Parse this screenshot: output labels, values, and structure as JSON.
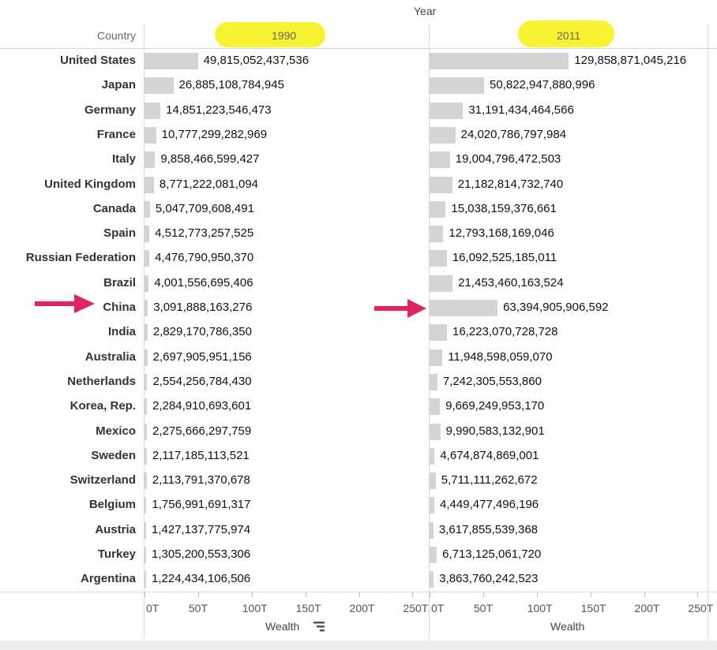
{
  "chart_data": {
    "type": "bar",
    "orientation": "horizontal",
    "column_header_title": "Year",
    "row_header_title": "Country",
    "categories": [
      "United States",
      "Japan",
      "Germany",
      "France",
      "Italy",
      "United Kingdom",
      "Canada",
      "Spain",
      "Russian Federation",
      "Brazil",
      "China",
      "India",
      "Australia",
      "Netherlands",
      "Korea, Rep.",
      "Mexico",
      "Sweden",
      "Switzerland",
      "Belgium",
      "Austria",
      "Turkey",
      "Argentina"
    ],
    "xlabel": "Wealth",
    "xlim": [
      0,
      260000000000000
    ],
    "xticks": [
      "0T",
      "50T",
      "100T",
      "150T",
      "200T",
      "250T"
    ],
    "series": [
      {
        "name": "1990",
        "values": [
          49815052437536,
          26885108784945,
          14851223546473,
          10777299282969,
          9858466599427,
          8771222081094,
          5047709608491,
          4512773257525,
          4476790950370,
          4001556695406,
          3091888163276,
          2829170786350,
          2697905951156,
          2554256784430,
          2284910693601,
          2275666297759,
          2117185113521,
          2113791370678,
          1756991691317,
          1427137775974,
          1305200553306,
          1224434106506
        ],
        "labels": [
          "49,815,052,437,536",
          "26,885,108,784,945",
          "14,851,223,546,473",
          "10,777,299,282,969",
          "9,858,466,599,427",
          "8,771,222,081,094",
          "5,047,709,608,491",
          "4,512,773,257,525",
          "4,476,790,950,370",
          "4,001,556,695,406",
          "3,091,888,163,276",
          "2,829,170,786,350",
          "2,697,905,951,156",
          "2,554,256,784,430",
          "2,284,910,693,601",
          "2,275,666,297,759",
          "2,117,185,113,521",
          "2,113,791,370,678",
          "1,756,991,691,317",
          "1,427,137,775,974",
          "1,305,200,553,306",
          "1,224,434,106,506"
        ]
      },
      {
        "name": "2011",
        "values": [
          129858871045216,
          50822947880996,
          31191434464566,
          24020786797984,
          19004796472503,
          21182814732740,
          15038159376661,
          12793168169046,
          16092525185011,
          21453460163524,
          63394905906592,
          16223070728728,
          11948598059070,
          7242305553860,
          9669249953170,
          9990583132901,
          4674874869001,
          5711111262672,
          4449477496196,
          3617855539368,
          6713125061720,
          3863760242523
        ],
        "labels": [
          "129,858,871,045,216",
          "50,822,947,880,996",
          "31,191,434,464,566",
          "24,020,786,797,984",
          "19,004,796,472,503",
          "21,182,814,732,740",
          "15,038,159,376,661",
          "12,793,168,169,046",
          "16,092,525,185,011",
          "21,453,460,163,524",
          "63,394,905,906,592",
          "16,223,070,728,728",
          "11,948,598,059,070",
          "7,242,305,553,860",
          "9,669,249,953,170",
          "9,990,583,132,901",
          "4,674,874,869,001",
          "5,711,111,262,672",
          "4,449,477,496,196",
          "3,617,855,539,368",
          "6,713,125,061,720",
          "3,863,760,242,523"
        ]
      }
    ],
    "annotations": [
      "red arrow pointing at China row label",
      "red arrow pointing at China 2011 bar",
      "yellow highlight over year headers"
    ],
    "colors": {
      "bar": "#d4d4d4",
      "highlight": "#f4f227",
      "arrow": "#e0245e"
    }
  }
}
